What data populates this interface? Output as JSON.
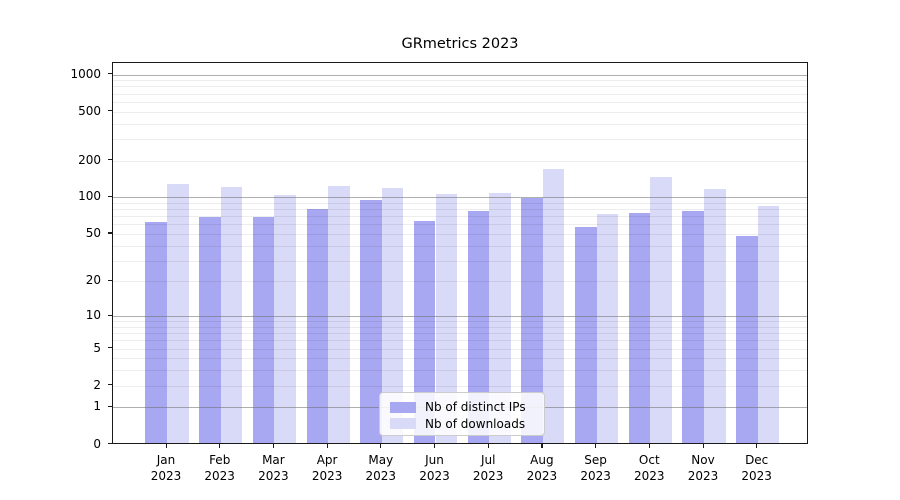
{
  "title": "GRmetrics 2023",
  "chart_data": {
    "type": "bar",
    "title": "GRmetrics 2023",
    "categories": [
      "Jan 2023",
      "Feb 2023",
      "Mar 2023",
      "Apr 2023",
      "May 2023",
      "Jun 2023",
      "Jul 2023",
      "Aug 2023",
      "Sep 2023",
      "Oct 2023",
      "Nov 2023",
      "Dec 2023"
    ],
    "series": [
      {
        "name": "Nb of distinct IPs",
        "color": "#a7a7f2",
        "values": [
          60,
          66,
          67,
          78,
          92,
          62,
          74,
          96,
          55,
          72,
          75,
          46
        ]
      },
      {
        "name": "Nb of downloads",
        "color": "#d9d9f8",
        "values": [
          125,
          118,
          101,
          120,
          114,
          102,
          104,
          163,
          71,
          142,
          112,
          82
        ]
      }
    ],
    "xlabel": "",
    "ylabel": "",
    "y_scale": "log1p",
    "y_ticks": [
      0,
      1,
      2,
      5,
      10,
      20,
      50,
      100,
      200,
      500,
      1000
    ],
    "y_minor_gridlines": [
      2,
      3,
      4,
      5,
      6,
      7,
      8,
      9,
      20,
      30,
      40,
      50,
      60,
      70,
      80,
      90,
      200,
      300,
      400,
      500,
      600,
      700,
      800,
      900
    ],
    "y_major_gridlines": [
      1,
      10,
      100,
      1000
    ],
    "ylim": [
      0,
      1240
    ],
    "grid": true,
    "legend_position": "lower center"
  },
  "legend": {
    "items": [
      {
        "label": "Nb of distinct IPs",
        "color": "#a7a7f2"
      },
      {
        "label": "Nb of downloads",
        "color": "#d9d9f8"
      }
    ]
  }
}
